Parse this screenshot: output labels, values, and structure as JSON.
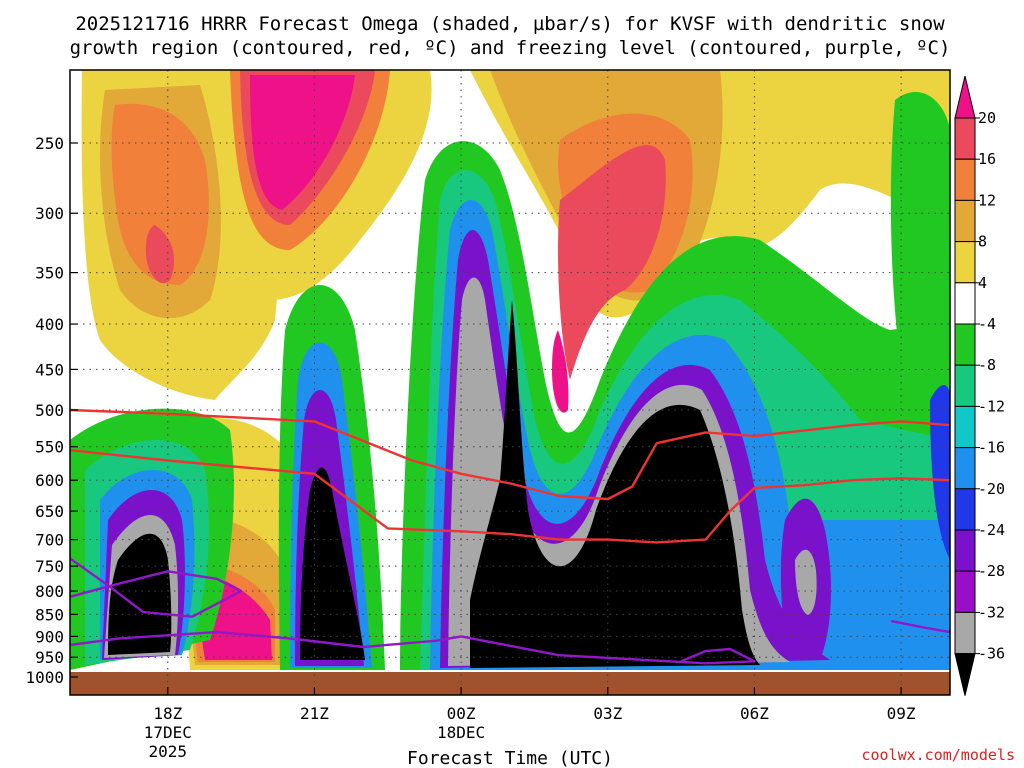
{
  "title_line1": "2025121716 HRRR Forecast Omega (shaded, µbar/s) for KVSF with dendritic snow",
  "title_line2": "growth region (contoured, red, ºC) and freezing level (contoured, purple, ºC)",
  "credit": "coolwx.com/models",
  "chart_data": {
    "type": "contour",
    "title": "2025121716 HRRR Forecast Omega (shaded, µbar/s) for KVSF with dendritic snow growth region (contoured, red, ºC) and freezing level (contoured, purple, ºC)",
    "xlabel": "Forecast Time (UTC)",
    "ylabel": "",
    "x_ticks": [
      {
        "label": "18Z",
        "sub1": "17DEC",
        "sub2": "2025",
        "hour": 18
      },
      {
        "label": "21Z",
        "sub1": "",
        "sub2": "",
        "hour": 21
      },
      {
        "label": "00Z",
        "sub1": "18DEC",
        "sub2": "",
        "hour": 24
      },
      {
        "label": "03Z",
        "sub1": "",
        "sub2": "",
        "hour": 27
      },
      {
        "label": "06Z",
        "sub1": "",
        "sub2": "",
        "hour": 30
      },
      {
        "label": "09Z",
        "sub1": "",
        "sub2": "",
        "hour": 33
      }
    ],
    "xlim_hours": [
      16,
      34
    ],
    "y_axis": "pressure (hPa), inverted",
    "ylim": [
      1000,
      200
    ],
    "y_ticks": [
      250,
      300,
      350,
      400,
      450,
      500,
      550,
      600,
      650,
      700,
      750,
      800,
      850,
      900,
      950,
      1000
    ],
    "grid": true,
    "colorbar": {
      "placement": "right",
      "labels": [
        "20",
        "16",
        "12",
        "8",
        "4",
        "-4",
        "-8",
        "-12",
        "-16",
        "-20",
        "-24",
        "-28",
        "-32",
        "-36"
      ],
      "bins": [
        {
          "color": "#ea4a5c"
        },
        {
          "color": "#f0803a"
        },
        {
          "color": "#e2a838"
        },
        {
          "color": "#ebd440"
        },
        {
          "color": "#ffffff"
        },
        {
          "color": "#22c822"
        },
        {
          "color": "#18c87e"
        },
        {
          "color": "#10c8c8"
        },
        {
          "color": "#2090ee"
        },
        {
          "color": "#2038e8"
        },
        {
          "color": "#7a12cc"
        },
        {
          "color": "#9a0ec8"
        },
        {
          "color": "#a8a8a8"
        }
      ],
      "top_color": "#ee1188",
      "bottom_color": "#000000"
    },
    "dgz_lines_red": [
      {
        "name": "",
        "color": "#ee3333",
        "points": [
          [
            16,
            500
          ],
          [
            18,
            505
          ],
          [
            21,
            515
          ],
          [
            23,
            570
          ],
          [
            24,
            590
          ],
          [
            25,
            605
          ],
          [
            26,
            625
          ],
          [
            27,
            630
          ],
          [
            27.5,
            610
          ],
          [
            28,
            545
          ],
          [
            29,
            530
          ],
          [
            30,
            535
          ],
          [
            32,
            520
          ],
          [
            33,
            515
          ],
          [
            34,
            520
          ]
        ]
      },
      {
        "name": "",
        "color": "#ee3333",
        "points": [
          [
            16,
            555
          ],
          [
            18,
            570
          ],
          [
            21,
            590
          ],
          [
            22.5,
            680
          ],
          [
            24,
            685
          ],
          [
            25,
            690
          ],
          [
            26,
            700
          ],
          [
            27,
            700
          ],
          [
            28,
            705
          ],
          [
            29,
            700
          ],
          [
            29.5,
            650
          ],
          [
            30,
            612
          ],
          [
            31,
            608
          ],
          [
            32,
            600
          ],
          [
            33,
            597
          ],
          [
            34,
            600
          ]
        ]
      }
    ],
    "freezing_level_purple": [
      {
        "name": "",
        "color": "#9018c8",
        "points": [
          [
            16,
            735
          ],
          [
            16.8,
            790
          ],
          [
            17.5,
            845
          ],
          [
            18.5,
            855
          ],
          [
            19.5,
            800
          ],
          [
            19,
            775
          ],
          [
            18,
            760
          ],
          [
            16.8,
            790
          ],
          [
            16,
            812
          ]
        ]
      },
      {
        "name": "",
        "color": "#9018c8",
        "points": [
          [
            16,
            920
          ],
          [
            17,
            905
          ],
          [
            19,
            890
          ],
          [
            20.5,
            905
          ],
          [
            22,
            925
          ],
          [
            23.5,
            910
          ],
          [
            24,
            900
          ],
          [
            26,
            945
          ],
          [
            29,
            965
          ],
          [
            30,
            960
          ],
          [
            29.5,
            930
          ],
          [
            29,
            935
          ],
          [
            28.5,
            960
          ]
        ]
      },
      {
        "name": "",
        "color": "#9018c8",
        "points": [
          [
            32.8,
            865
          ],
          [
            33.5,
            880
          ],
          [
            34,
            890
          ]
        ]
      }
    ]
  }
}
